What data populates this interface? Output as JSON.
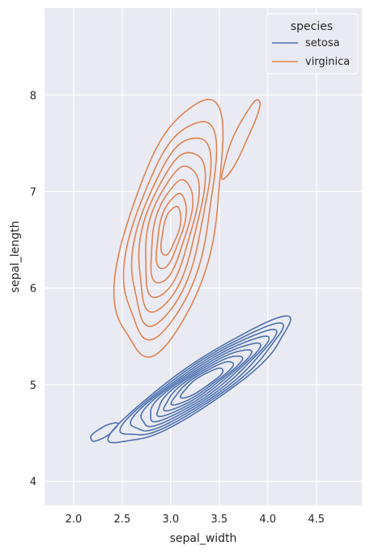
{
  "chart_data": {
    "type": "kde-contour",
    "xlabel": "sepal_width",
    "ylabel": "sepal_length",
    "xlim": [
      1.7,
      4.97
    ],
    "ylim": [
      3.75,
      8.9
    ],
    "xticks": [
      2.0,
      2.5,
      3.0,
      3.5,
      4.0,
      4.5
    ],
    "xtick_labels": [
      "2.0",
      "2.5",
      "3.0",
      "3.5",
      "4.0",
      "4.5"
    ],
    "yticks": [
      4,
      5,
      6,
      7,
      8
    ],
    "ytick_labels": [
      "4",
      "5",
      "6",
      "7",
      "8"
    ],
    "grid": true,
    "legend": {
      "title": "species",
      "placement": "top-right",
      "entries": [
        "setosa",
        "virginica"
      ]
    },
    "series": [
      {
        "name": "setosa",
        "color": "#4c72b0",
        "components": [
          {
            "center": [
              3.32,
              5.02
            ],
            "levels": [
              {
                "a": 1.1,
                "b": 0.22,
                "angle": 0.6
              },
              {
                "a": 0.98,
                "b": 0.2,
                "angle": 0.6
              },
              {
                "a": 0.88,
                "b": 0.18,
                "angle": 0.6
              },
              {
                "a": 0.78,
                "b": 0.16,
                "angle": 0.6
              },
              {
                "a": 0.68,
                "b": 0.14,
                "angle": 0.6
              },
              {
                "a": 0.58,
                "b": 0.12,
                "angle": 0.6
              },
              {
                "a": 0.48,
                "b": 0.1,
                "angle": 0.6
              },
              {
                "a": 0.38,
                "b": 0.08,
                "angle": 0.6
              },
              {
                "a": 0.26,
                "b": 0.06,
                "angle": 0.6
              }
            ]
          },
          {
            "center": [
              2.31,
              4.51
            ],
            "levels": [
              {
                "a": 0.16,
                "b": 0.05,
                "angle": 0.55
              }
            ]
          }
        ]
      },
      {
        "name": "virginica",
        "color": "#dd8452",
        "components": [
          {
            "center": [
              3.0,
              6.6
            ],
            "levels": [
              {
                "a": 1.35,
                "b": 0.45,
                "angle": 1.32
              },
              {
                "a": 1.15,
                "b": 0.38,
                "angle": 1.32
              },
              {
                "a": 1.0,
                "b": 0.32,
                "angle": 1.32
              },
              {
                "a": 0.85,
                "b": 0.27,
                "angle": 1.32
              },
              {
                "a": 0.7,
                "b": 0.22,
                "angle": 1.32
              },
              {
                "a": 0.55,
                "b": 0.17,
                "angle": 1.32
              },
              {
                "a": 0.4,
                "b": 0.12,
                "angle": 1.32
              },
              {
                "a": 0.26,
                "b": 0.08,
                "angle": 1.32
              }
            ]
          },
          {
            "center": [
              3.72,
              7.55
            ],
            "levels": [
              {
                "a": 0.45,
                "b": 0.07,
                "angle": 1.15
              }
            ]
          }
        ]
      }
    ]
  }
}
